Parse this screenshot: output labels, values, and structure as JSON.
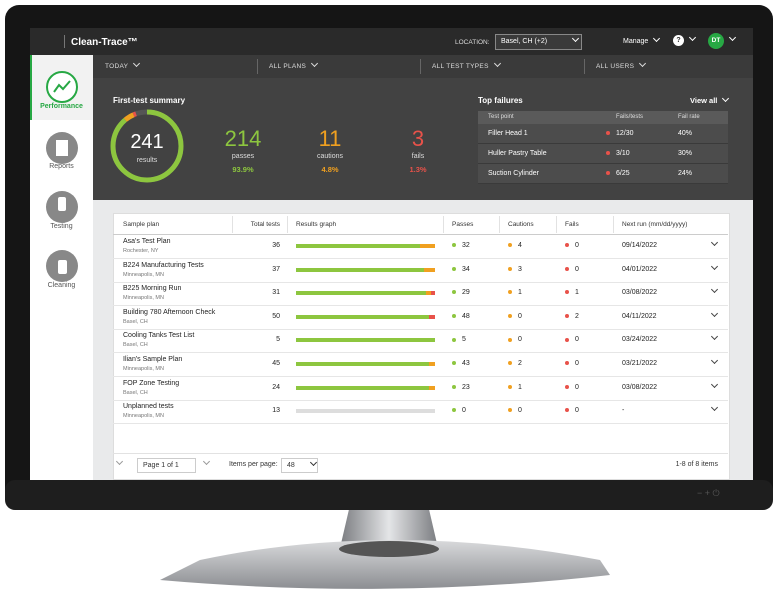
{
  "header": {
    "brand": "Clean-Trace™",
    "location_label": "LOCATION:",
    "location": "Basel, CH (+2)",
    "manage": "Manage",
    "help": "?",
    "user_initials": "DT"
  },
  "nav": [
    "Performance",
    "Reports",
    "Testing",
    "Cleaning"
  ],
  "filters": [
    "TODAY",
    "ALL PLANS",
    "ALL TEST TYPES",
    "ALL USERS"
  ],
  "summary": {
    "title": "First-test summary",
    "results": 241,
    "results_label": "results",
    "passes": 214,
    "passes_label": "passes",
    "passes_pct": "93.9%",
    "cautions": 11,
    "cautions_label": "cautions",
    "cautions_pct": "4.8%",
    "fails": 3,
    "fails_label": "fails",
    "fails_pct": "1.3%"
  },
  "top_failures": {
    "title": "Top failures",
    "view_all": "View all",
    "columns": [
      "Test point",
      "Fails/tests",
      "Fail rate"
    ],
    "rows": [
      [
        "Filler Head 1",
        "12/30",
        "40%"
      ],
      [
        "Huller Pastry Table",
        "3/10",
        "30%"
      ],
      [
        "Suction Cylinder",
        "6/25",
        "24%"
      ]
    ]
  },
  "table": {
    "columns": [
      "Sample plan",
      "Total tests",
      "Results graph",
      "Passes",
      "Cautions",
      "Fails",
      "Next run (mm/dd/yyyy)"
    ],
    "rows": [
      {
        "name": "Asa's Test Plan",
        "location": "Rochester, NY",
        "total": 36,
        "passes": 32,
        "cautions": 4,
        "fails": 0,
        "next_run": "09/14/2022"
      },
      {
        "name": "B224 Manufacturing Tests",
        "location": "Minneapolis, MN",
        "total": 37,
        "passes": 34,
        "cautions": 3,
        "fails": 0,
        "next_run": "04/01/2022"
      },
      {
        "name": "B225 Morning Run",
        "location": "Minneapolis, MN",
        "total": 31,
        "passes": 29,
        "cautions": 1,
        "fails": 1,
        "next_run": "03/08/2022"
      },
      {
        "name": "Building 780 Afternoon Check",
        "location": "Basel, CH",
        "total": 50,
        "passes": 48,
        "cautions": 0,
        "fails": 2,
        "next_run": "04/11/2022"
      },
      {
        "name": "Cooling Tanks Test List",
        "location": "Basel, CH",
        "total": 5,
        "passes": 5,
        "cautions": 0,
        "fails": 0,
        "next_run": "03/24/2022"
      },
      {
        "name": "Ilian's Sample Plan",
        "location": "Minneapolis, MN",
        "total": 45,
        "passes": 43,
        "cautions": 2,
        "fails": 0,
        "next_run": "03/21/2022"
      },
      {
        "name": "FOP Zone Testing",
        "location": "Basel, CH",
        "total": 24,
        "passes": 23,
        "cautions": 1,
        "fails": 0,
        "next_run": "03/08/2022"
      },
      {
        "name": "Unplanned tests",
        "location": "Minneapolis, MN",
        "total": 13,
        "passes": 0,
        "cautions": 0,
        "fails": 0,
        "next_run": "-"
      }
    ]
  },
  "pagination": {
    "page": "Page 1 of 1",
    "items_label": "Items per page:",
    "items": "48",
    "range": "1-8 of 8 items"
  }
}
